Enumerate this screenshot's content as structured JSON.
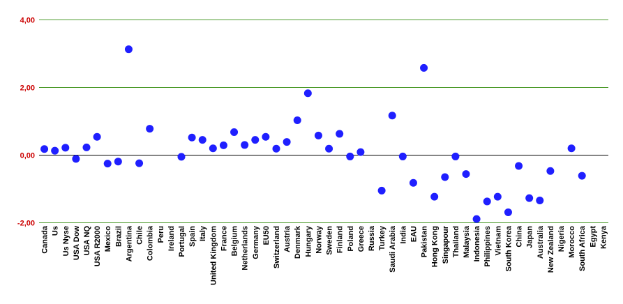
{
  "chart_data": {
    "type": "scatter",
    "title": "",
    "xlabel": "",
    "ylabel": "",
    "ylim": [
      -2,
      4
    ],
    "yticks": [
      {
        "value": 4,
        "label": "4,00"
      },
      {
        "value": 2,
        "label": "2,00"
      },
      {
        "value": 0,
        "label": "0,00"
      },
      {
        "value": -2,
        "label": "-2,00"
      }
    ],
    "grid": true,
    "legend": "none",
    "marker_color": "#1f1fff",
    "grid_color": "#4c9a2a",
    "ytick_color": "#cc0000",
    "categories": [
      "Canada",
      "Us",
      "Us Nyse",
      "USA Dow",
      "USA NQ",
      "USA R2000",
      "Mexico",
      "Brazil",
      "Argentina",
      "Chile",
      "Colombia",
      "Peru",
      "Ireland",
      "Portugal",
      "Spain",
      "Italy",
      "United Kingdom",
      "France",
      "Belgium",
      "Netherlands",
      "Germany",
      "EU50",
      "Switzerland",
      "Austria",
      "Denmark",
      "Hungary",
      "Norway",
      "Sweden",
      "Finland",
      "Poland",
      "Greece",
      "Russia",
      "Turkey",
      "Saudi Arabia",
      "India",
      "EAU",
      "Pakistan",
      "Hong Kong",
      "Singapour",
      "Thailand",
      "Malaysia",
      "Indonesia",
      "Philippines",
      "Vietnam",
      "South Korea",
      "China",
      "Japan",
      "Australia",
      "New Zealand",
      "Nigeria",
      "Morocco",
      "South Africa",
      "Egypt",
      "Kenya"
    ],
    "values": [
      0.17,
      0.12,
      0.21,
      -0.12,
      0.22,
      0.53,
      -0.26,
      -0.2,
      3.12,
      -0.25,
      0.77,
      null,
      null,
      -0.06,
      0.51,
      0.44,
      0.19,
      0.28,
      0.67,
      0.29,
      0.44,
      0.53,
      0.18,
      0.38,
      1.02,
      1.82,
      0.57,
      0.18,
      0.62,
      -0.05,
      0.08,
      null,
      -1.06,
      1.16,
      -0.05,
      -0.83,
      2.57,
      -1.24,
      -0.66,
      -0.05,
      -0.57,
      -1.9,
      -1.38,
      -1.24,
      -1.7,
      -0.33,
      -1.28,
      -1.35,
      -0.48,
      null,
      0.19,
      -0.62,
      null,
      null
    ]
  }
}
